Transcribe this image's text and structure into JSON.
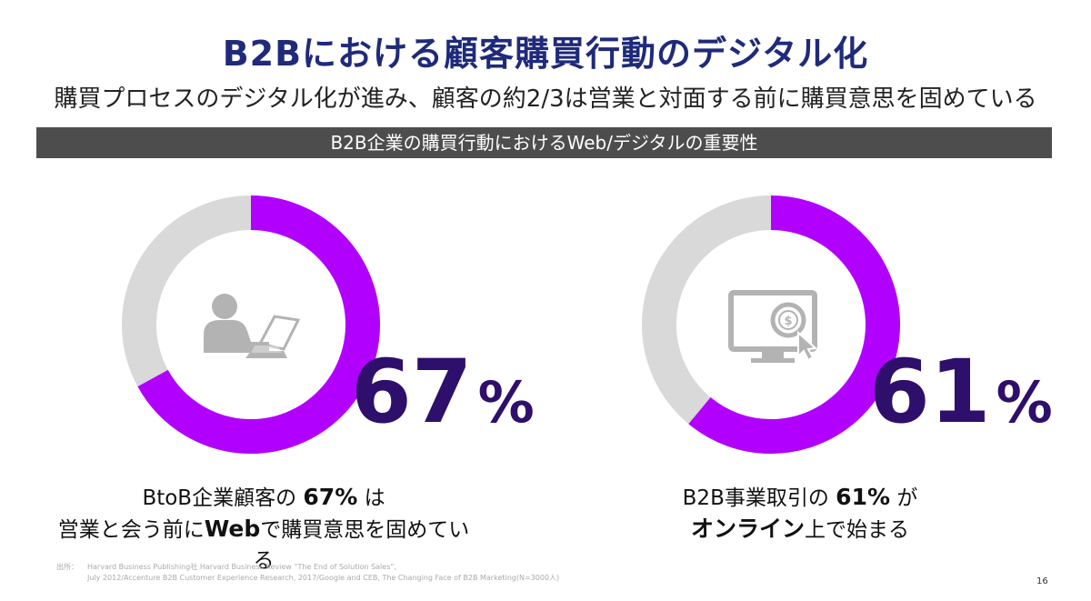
{
  "title": "B2Bにおける顧客購買行動のデジタル化",
  "subtitle": "購買プロセスのデジタル化が進み、顧客の約2/3は営業と対面する前に購買意思を固めている",
  "band_label": "B2B企業の購買行動におけるWeb/デジタルの重要性",
  "colors": {
    "title": "#1f2a7a",
    "accent": "#b200ff",
    "remainder": "#d9d9d9",
    "big_number": "#2e0f6b",
    "band": "#4d4d4d",
    "icon": "#b3b3b3"
  },
  "chart_data": [
    {
      "type": "pie",
      "style": "donut",
      "icon": "person-laptop-icon",
      "values": [
        67,
        33
      ],
      "highlight_label": "67",
      "unit": "%",
      "caption": {
        "line1_pre": "BtoB企業顧客の",
        "line1_bold": "67%",
        "line1_post": "は",
        "line2_pre": "営業と会う前に",
        "line2_bold": "Web",
        "line2_post": "で購買意思を固めている"
      }
    },
    {
      "type": "pie",
      "style": "donut",
      "icon": "monitor-dollar-cursor-icon",
      "values": [
        61,
        39
      ],
      "highlight_label": "61",
      "unit": "%",
      "caption": {
        "line1_pre": "B2B事業取引の",
        "line1_bold": "61%",
        "line1_post": "が",
        "line2_pre": "",
        "line2_bold": "オンライン",
        "line2_post": "上で始まる"
      }
    }
  ],
  "footnote": {
    "label": "出所：",
    "line1": "Harvard Business Publishing社 Harvard Business Review “The End of Solution Sales”,",
    "line2": "July 2012/Accenture B2B Customer Experience Research, 2017/Google and CEB, The Changing Face of B2B Marketing(N=3000人)"
  },
  "page_number": "16"
}
